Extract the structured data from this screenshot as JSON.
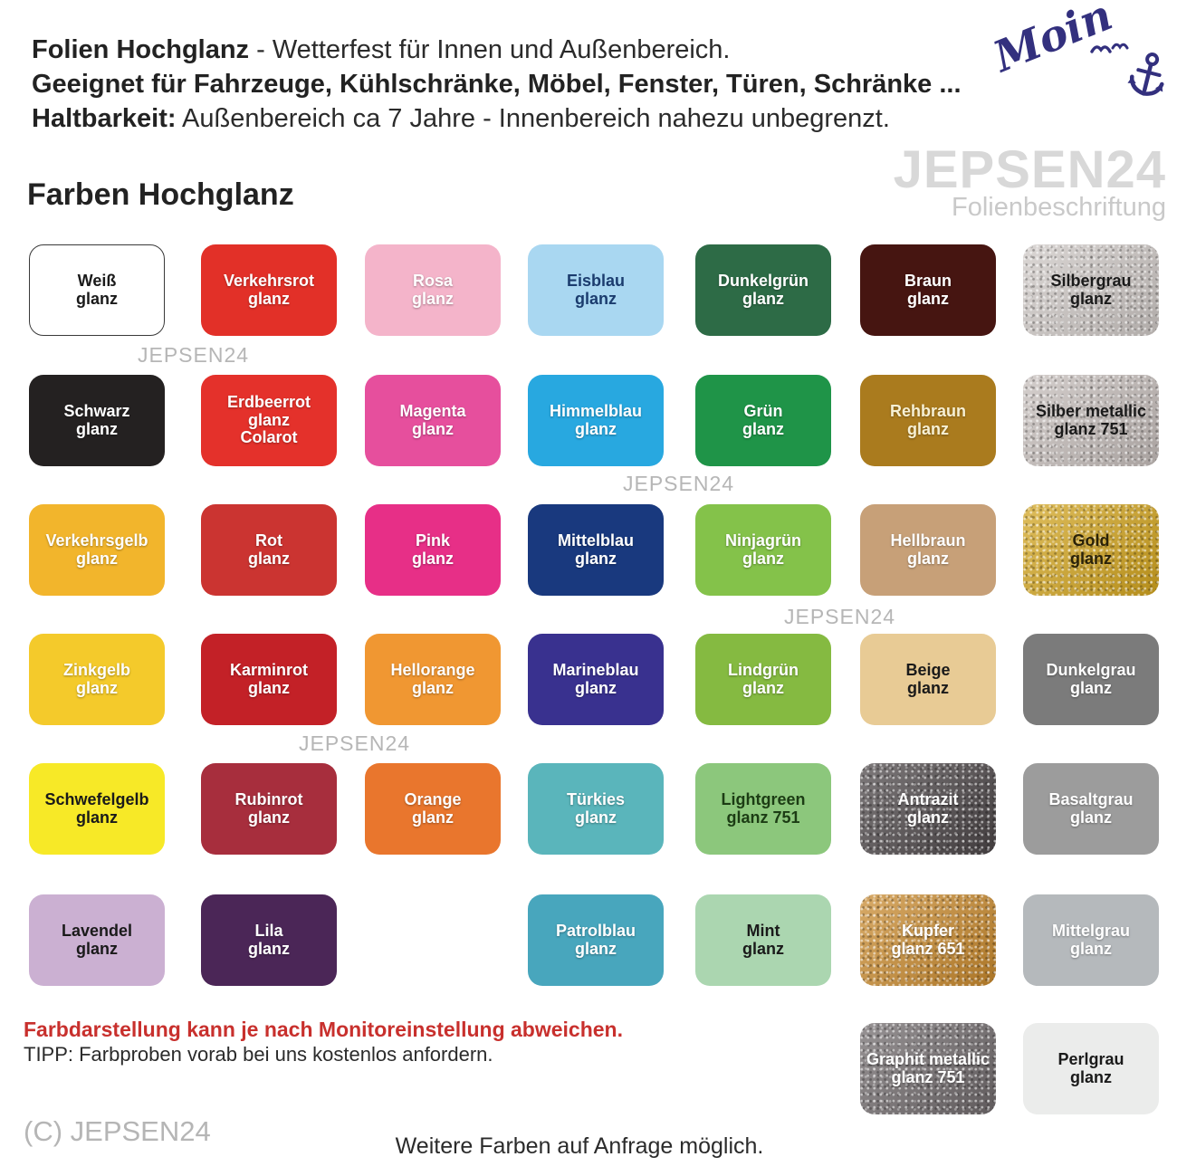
{
  "header": {
    "line1_bold": "Folien Hochglanz",
    "line1_rest": " - Wetterfest für Innen und Außenbereich.",
    "line2_bold": "Geeignet für Fahrzeuge, Kühlschränke, Möbel, Fenster, Türen, Schränke ...",
    "line3_bold": "Haltbarkeit:",
    "line3_rest": " Außenbereich ca 7 Jahre - Innenbereich nahezu unbegrenzt."
  },
  "moin": {
    "text": "Moin",
    "color": "#33307e"
  },
  "brand": {
    "name": "JEPSEN24",
    "subtitle": "Folienbeschriftung"
  },
  "section_title": "Farben Hochglanz",
  "watermark_text": "JEPSEN24",
  "icons": {
    "anchor": "anchor-icon",
    "birds": "seagulls-icon"
  },
  "swatches": [
    {
      "lines": [
        "Weiß",
        "glanz"
      ],
      "bg": "#ffffff",
      "fg": "#1a1a1a",
      "border": true,
      "col": 0,
      "row": 0
    },
    {
      "lines": [
        "Verkehrsrot",
        "glanz"
      ],
      "bg": "#e23028",
      "fg": "#ffffff",
      "col": 1,
      "row": 0
    },
    {
      "lines": [
        "Rosa",
        "glanz"
      ],
      "bg": "#f4b4ca",
      "fg": "#ffffff",
      "col": 2,
      "row": 0
    },
    {
      "lines": [
        "Eisblau",
        "glanz"
      ],
      "bg": "#a9d7f1",
      "fg": "#1b3c6e",
      "col": 3,
      "row": 0
    },
    {
      "lines": [
        "Dunkelgrün",
        "glanz"
      ],
      "bg": "#2d6b46",
      "fg": "#ffffff",
      "col": 4,
      "row": 0
    },
    {
      "lines": [
        "Braun",
        "glanz"
      ],
      "bg": "#461511",
      "fg": "#ffffff",
      "col": 5,
      "row": 0
    },
    {
      "lines": [
        "Silbergrau",
        "glanz"
      ],
      "bg": "#cdc7c4",
      "fg": "#1a1a1a",
      "metallic": true,
      "col": 6,
      "row": 0
    },
    {
      "lines": [
        "Schwarz",
        "glanz"
      ],
      "bg": "#242121",
      "fg": "#ffffff",
      "col": 0,
      "row": 1
    },
    {
      "lines": [
        "Erdbeerrot",
        "glanz",
        "Colarot"
      ],
      "bg": "#e4312b",
      "fg": "#ffffff",
      "col": 1,
      "row": 1
    },
    {
      "lines": [
        "Magenta",
        "glanz"
      ],
      "bg": "#e64f9d",
      "fg": "#ffffff",
      "col": 2,
      "row": 1
    },
    {
      "lines": [
        "Himmelblau",
        "glanz"
      ],
      "bg": "#28a8e0",
      "fg": "#ffffff",
      "col": 3,
      "row": 1
    },
    {
      "lines": [
        "Grün",
        "glanz"
      ],
      "bg": "#1f9448",
      "fg": "#ffffff",
      "col": 4,
      "row": 1
    },
    {
      "lines": [
        "Rehbraun",
        "glanz"
      ],
      "bg": "#aa7b1e",
      "fg": "#f7f0d4",
      "col": 5,
      "row": 1
    },
    {
      "lines": [
        "Silber metallic",
        "glanz 751"
      ],
      "bg": "#c4bcb9",
      "fg": "#1a1a1a",
      "metallic": true,
      "col": 6,
      "row": 1
    },
    {
      "lines": [
        "Verkehrsgelb",
        "glanz"
      ],
      "bg": "#f2b52c",
      "fg": "#ffffff",
      "col": 0,
      "row": 2
    },
    {
      "lines": [
        "Rot",
        "glanz"
      ],
      "bg": "#cb3431",
      "fg": "#ffffff",
      "col": 1,
      "row": 2
    },
    {
      "lines": [
        "Pink",
        "glanz"
      ],
      "bg": "#e72f87",
      "fg": "#ffffff",
      "col": 2,
      "row": 2
    },
    {
      "lines": [
        "Mittelblau",
        "glanz"
      ],
      "bg": "#19397e",
      "fg": "#ffffff",
      "col": 3,
      "row": 2
    },
    {
      "lines": [
        "Ninjagrün",
        "glanz"
      ],
      "bg": "#84c24a",
      "fg": "#ffffff",
      "col": 4,
      "row": 2
    },
    {
      "lines": [
        "Hellbraun",
        "glanz"
      ],
      "bg": "#c7a078",
      "fg": "#ffffff",
      "col": 5,
      "row": 2
    },
    {
      "lines": [
        "Gold",
        "glanz"
      ],
      "bg": "#d2a41e",
      "fg": "#2a2208",
      "metallic": true,
      "col": 6,
      "row": 2
    },
    {
      "lines": [
        "Zinkgelb",
        "glanz"
      ],
      "bg": "#f4ca2b",
      "fg": "#ffffff",
      "col": 0,
      "row": 3
    },
    {
      "lines": [
        "Karminrot",
        "glanz"
      ],
      "bg": "#c32127",
      "fg": "#ffffff",
      "col": 1,
      "row": 3
    },
    {
      "lines": [
        "Hellorange",
        "glanz"
      ],
      "bg": "#f09732",
      "fg": "#ffffff",
      "col": 2,
      "row": 3
    },
    {
      "lines": [
        "Marineblau",
        "glanz"
      ],
      "bg": "#39318f",
      "fg": "#ffffff",
      "col": 3,
      "row": 3
    },
    {
      "lines": [
        "Lindgrün",
        "glanz"
      ],
      "bg": "#85ba41",
      "fg": "#ffffff",
      "col": 4,
      "row": 3
    },
    {
      "lines": [
        "Beige",
        "glanz"
      ],
      "bg": "#e8cb95",
      "fg": "#1a1a1a",
      "col": 5,
      "row": 3
    },
    {
      "lines": [
        "Dunkelgrau",
        "glanz"
      ],
      "bg": "#7b7b7b",
      "fg": "#ffffff",
      "col": 6,
      "row": 3
    },
    {
      "lines": [
        "Schwefelgelb",
        "glanz"
      ],
      "bg": "#f7e927",
      "fg": "#1a1a1a",
      "col": 0,
      "row": 4
    },
    {
      "lines": [
        "Rubinrot",
        "glanz"
      ],
      "bg": "#a72e3d",
      "fg": "#ffffff",
      "col": 1,
      "row": 4
    },
    {
      "lines": [
        "Orange",
        "glanz"
      ],
      "bg": "#e9762d",
      "fg": "#ffffff",
      "col": 2,
      "row": 4
    },
    {
      "lines": [
        "Türkies",
        "glanz"
      ],
      "bg": "#5ab5bb",
      "fg": "#ffffff",
      "col": 3,
      "row": 4
    },
    {
      "lines": [
        "Lightgreen",
        "glanz 751"
      ],
      "bg": "#8cc77c",
      "fg": "#1c3c14",
      "col": 4,
      "row": 4
    },
    {
      "lines": [
        "Antrazit",
        "glanz"
      ],
      "bg": "#4b4547",
      "fg": "#ffffff",
      "metallic": true,
      "col": 5,
      "row": 4
    },
    {
      "lines": [
        "Basaltgrau",
        "glanz"
      ],
      "bg": "#9c9c9c",
      "fg": "#ffffff",
      "col": 6,
      "row": 4
    },
    {
      "lines": [
        "Lavendel",
        "glanz"
      ],
      "bg": "#cbb0d2",
      "fg": "#1a1a1a",
      "col": 0,
      "row": 5
    },
    {
      "lines": [
        "Lila",
        "glanz"
      ],
      "bg": "#4b2657",
      "fg": "#ffffff",
      "col": 1,
      "row": 5
    },
    {
      "lines": [
        "Patrolblau",
        "glanz"
      ],
      "bg": "#48a6bd",
      "fg": "#ffffff",
      "col": 3,
      "row": 5
    },
    {
      "lines": [
        "Mint",
        "glanz"
      ],
      "bg": "#abd6b0",
      "fg": "#1a1a1a",
      "col": 4,
      "row": 5
    },
    {
      "lines": [
        "Kupfer",
        "glanz 651"
      ],
      "bg": "#c8892d",
      "fg": "#ffffff",
      "metallic": true,
      "col": 5,
      "row": 5
    },
    {
      "lines": [
        "Mittelgrau",
        "glanz"
      ],
      "bg": "#b5b9bc",
      "fg": "#ffffff",
      "col": 6,
      "row": 5
    },
    {
      "lines": [
        "Graphit metallic",
        "glanz 751"
      ],
      "bg": "#6f696b",
      "fg": "#ffffff",
      "metallic": true,
      "col": 5,
      "row": 6
    },
    {
      "lines": [
        "Perlgrau",
        "glanz"
      ],
      "bg": "#ebeceb",
      "fg": "#1a1a1a",
      "col": 6,
      "row": 6
    }
  ],
  "footer": {
    "warning": "Farbdarstellung kann je nach Monitoreinstellung abweichen.",
    "tip": "TIPP: Farbproben vorab bei uns kostenlos anfordern.",
    "copyright": "(C) JEPSEN24",
    "more": "Weitere Farben auf Anfrage möglich."
  }
}
